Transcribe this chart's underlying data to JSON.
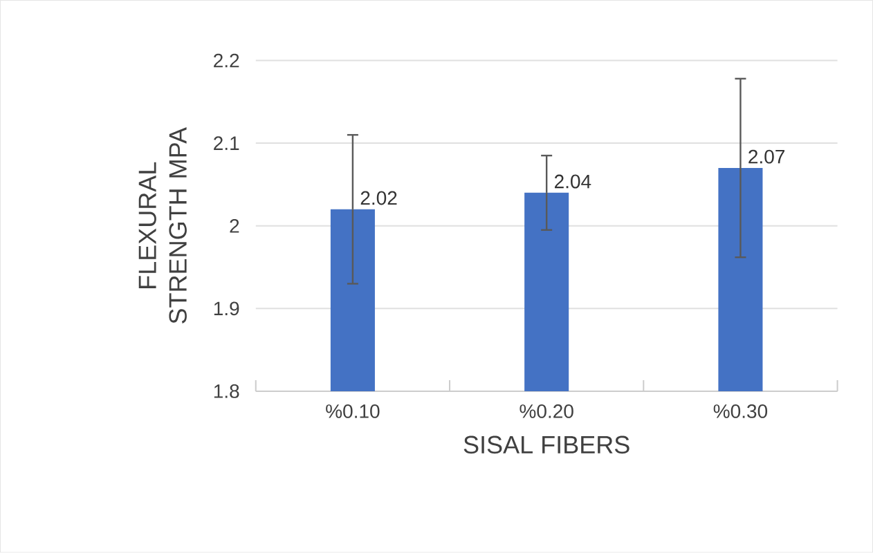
{
  "chart_data": {
    "type": "bar",
    "xlabel": "SISAL FIBERS",
    "ylabel": "FLEXURAL STRENGTH MPA",
    "categories": [
      "%0.10",
      "%0.20",
      "%0.30"
    ],
    "values": [
      2.02,
      2.04,
      2.07
    ],
    "errors": [
      0.09,
      0.045,
      0.108
    ],
    "color": "#4472c4",
    "ylim": [
      1.8,
      2.2
    ],
    "yticks": [
      1.8,
      1.9,
      2,
      2.1,
      2.2
    ],
    "value_labels": [
      "2.02",
      "2.04",
      "2.07"
    ],
    "grid": "y"
  }
}
